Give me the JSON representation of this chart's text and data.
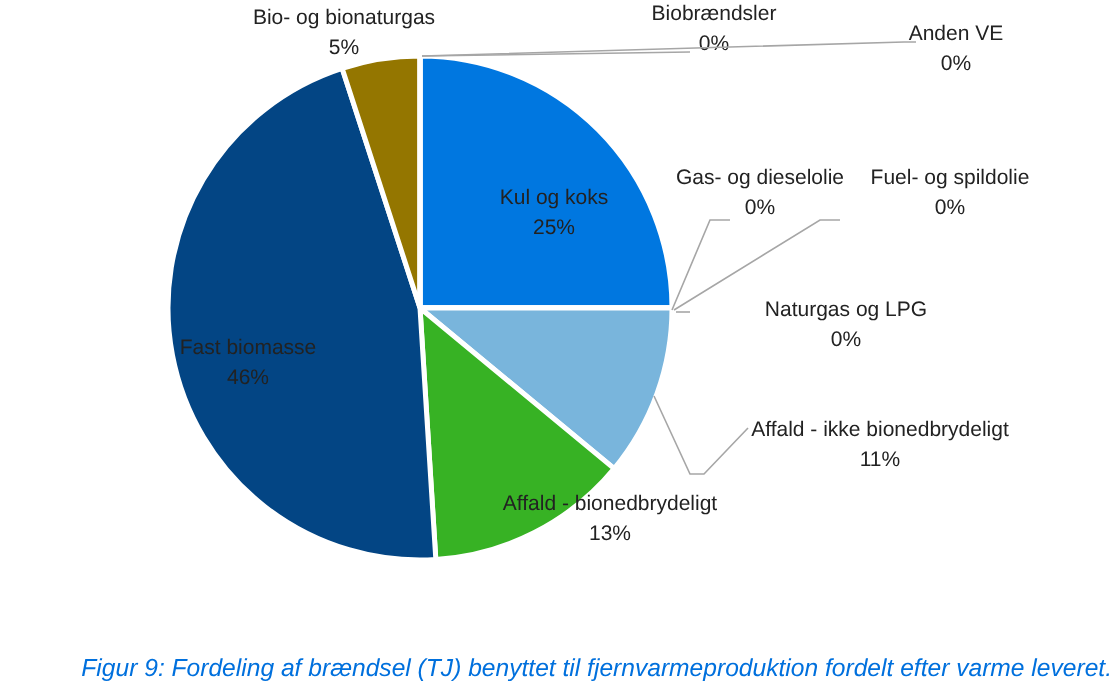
{
  "chart_data": {
    "type": "pie",
    "categories": [
      "Kul og koks",
      "Gas- og dieselolie",
      "Fuel- og spildolie",
      "Naturgas og LPG",
      "Affald - ikke bionedbrydeligt",
      "Affald - bionedbrydeligt",
      "Fast biomasse",
      "Bio- og bionaturgas",
      "Biobrændsler",
      "Anden VE"
    ],
    "values": [
      25,
      0,
      0,
      0,
      11,
      13,
      46,
      5,
      0,
      0
    ],
    "value_labels": [
      "25%",
      "0%",
      "0%",
      "0%",
      "11%",
      "13%",
      "46%",
      "5%",
      "0%",
      "0%"
    ],
    "colors": [
      "#0077e0",
      "#a5a5a5",
      "#ffc000",
      "#5b9bd5",
      "#79b5dc",
      "#37b224",
      "#034584",
      "#947600",
      "#70ad47",
      "#264478"
    ],
    "annotations": [
      "Figur 9: Fordeling af brændsel (TJ) benyttet til fjernvarmeproduktion fordelt efter varme leveret."
    ]
  }
}
